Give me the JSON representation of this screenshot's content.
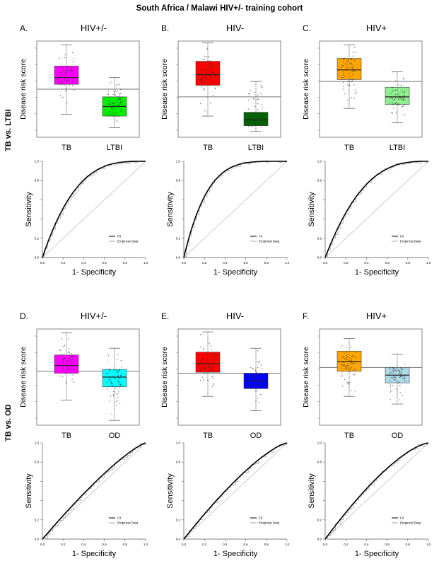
{
  "title": "South Africa / Malawi HIV+/- training cohort",
  "row_labels": [
    "TB vs. LTBI",
    "TB vs. OD"
  ],
  "box_ylabel": "Disease risk score",
  "roc_xlabel": "1- Specificity",
  "roc_ylabel": "Sensitivity",
  "roc_legend": [
    "Fit",
    "Empirical Data"
  ],
  "roc_ticks": [
    "0.0",
    "0.2",
    "0.4",
    "0.6",
    "0.8",
    "1.0"
  ],
  "chart_data": [
    {
      "type": "box",
      "panel": "A.",
      "title": "HIV+/-",
      "categories": [
        "TB",
        "LTBI"
      ],
      "colors": [
        "#ff00ff",
        "#00ee00"
      ],
      "boxes": [
        {
          "min": 0.24,
          "q1": 0.55,
          "median": 0.62,
          "q3": 0.74,
          "max": 0.96
        },
        {
          "min": 0.1,
          "q1": 0.22,
          "median": 0.32,
          "q3": 0.42,
          "max": 0.62
        }
      ],
      "threshold": 0.5,
      "ylim": [
        0,
        1
      ]
    },
    {
      "type": "box",
      "panel": "B.",
      "title": "HIV-",
      "categories": [
        "TB",
        "LTBI"
      ],
      "colors": [
        "#ff0000",
        "#006400"
      ],
      "boxes": [
        {
          "min": 0.22,
          "q1": 0.54,
          "median": 0.65,
          "q3": 0.79,
          "max": 0.98
        },
        {
          "min": 0.06,
          "q1": 0.12,
          "median": 0.18,
          "q3": 0.26,
          "max": 0.58
        }
      ],
      "threshold": 0.42,
      "ylim": [
        0,
        1
      ]
    },
    {
      "type": "box",
      "panel": "C.",
      "title": "HIV+",
      "categories": [
        "TB",
        "LTBI"
      ],
      "colors": [
        "#ffa500",
        "#90ee90"
      ],
      "boxes": [
        {
          "min": 0.3,
          "q1": 0.6,
          "median": 0.7,
          "q3": 0.82,
          "max": 0.96
        },
        {
          "min": 0.15,
          "q1": 0.34,
          "median": 0.42,
          "q3": 0.52,
          "max": 0.68
        }
      ],
      "threshold": 0.58,
      "ylim": [
        0,
        1
      ]
    },
    {
      "type": "box",
      "panel": "D.",
      "title": "HIV+/-",
      "categories": [
        "TB",
        "OD"
      ],
      "colors": [
        "#ff00ff",
        "#00ffff"
      ],
      "boxes": [
        {
          "min": 0.26,
          "q1": 0.54,
          "median": 0.62,
          "q3": 0.73,
          "max": 0.96
        },
        {
          "min": 0.05,
          "q1": 0.4,
          "median": 0.5,
          "q3": 0.58,
          "max": 0.8
        }
      ],
      "threshold": 0.56,
      "ylim": [
        0,
        1
      ]
    },
    {
      "type": "box",
      "panel": "E.",
      "title": "HIV-",
      "categories": [
        "TB",
        "OD"
      ],
      "colors": [
        "#ff0000",
        "#0000ff"
      ],
      "boxes": [
        {
          "min": 0.3,
          "q1": 0.55,
          "median": 0.64,
          "q3": 0.76,
          "max": 0.97
        },
        {
          "min": 0.15,
          "q1": 0.38,
          "median": 0.46,
          "q3": 0.54,
          "max": 0.8
        }
      ],
      "threshold": 0.54,
      "ylim": [
        0,
        1
      ]
    },
    {
      "type": "box",
      "panel": "F.",
      "title": "HIV+",
      "categories": [
        "TB",
        "OD"
      ],
      "colors": [
        "#ffa500",
        "#add8e6"
      ],
      "boxes": [
        {
          "min": 0.3,
          "q1": 0.56,
          "median": 0.66,
          "q3": 0.77,
          "max": 0.9
        },
        {
          "min": 0.22,
          "q1": 0.44,
          "median": 0.52,
          "q3": 0.6,
          "max": 0.74
        }
      ],
      "threshold": 0.6,
      "ylim": [
        0,
        1
      ]
    },
    {
      "type": "line",
      "panel": "A-roc",
      "auc_shape": 3.2,
      "xlim": [
        0,
        1
      ],
      "ylim": [
        0,
        1
      ]
    },
    {
      "type": "line",
      "panel": "B-roc",
      "auc_shape": 4.5,
      "xlim": [
        0,
        1
      ],
      "ylim": [
        0,
        1
      ]
    },
    {
      "type": "line",
      "panel": "C-roc",
      "auc_shape": 2.8,
      "xlim": [
        0,
        1
      ],
      "ylim": [
        0,
        1
      ]
    },
    {
      "type": "line",
      "panel": "D-roc",
      "auc_shape": 1.25,
      "xlim": [
        0,
        1
      ],
      "ylim": [
        0,
        1
      ]
    },
    {
      "type": "line",
      "panel": "E-roc",
      "auc_shape": 1.35,
      "xlim": [
        0,
        1
      ],
      "ylim": [
        0,
        1
      ]
    },
    {
      "type": "line",
      "panel": "F-roc",
      "auc_shape": 1.45,
      "xlim": [
        0,
        1
      ],
      "ylim": [
        0,
        1
      ]
    }
  ]
}
